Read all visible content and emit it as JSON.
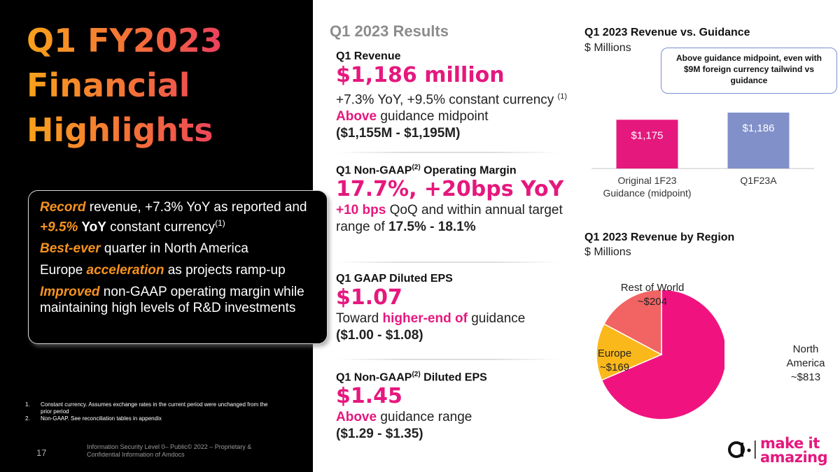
{
  "title": {
    "line1": "Q1 FY2023",
    "line2": "Financial",
    "line3": "Highlights"
  },
  "highlights": [
    {
      "em": "Record",
      "text": " revenue, +7.3% YoY as reported and ",
      "em2": "+9.5%",
      "bold": " YoY",
      "text2": " constant currency",
      "sup": "(1)"
    },
    {
      "em": "Best-ever",
      "text": " quarter in North America"
    },
    {
      "pre": "Europe ",
      "em": "acceleration",
      "text": " as projects ramp-up"
    },
    {
      "em": "Improved",
      "text": " non-GAAP operating margin while maintaining high levels of R&D investments"
    }
  ],
  "footnotes": [
    {
      "num": "1.",
      "text": "Constant currency. Assumes exchange rates in the current period were unchanged from the prior period"
    },
    {
      "num": "2.",
      "text": "Non-GAAP. See reconciliation tables in appendix"
    }
  ],
  "page_number": "17",
  "confidential": "Information Security Level 0– Public© 2022 – Proprietary & Confidential Information of Amdocs",
  "results": {
    "title": "Q1 2023 Results",
    "revenue": {
      "label": "Q1 Revenue",
      "value": "$1,186 million",
      "line1": "+7.3% YoY, +9.5% constant currency ",
      "line1_sup": "(1)",
      "above": "Above",
      "line2": " guidance midpoint",
      "line3": "($1,155M - $1,195M)"
    },
    "margin": {
      "label_pre": "Q1 Non-GAAP",
      "label_sup": "(2)",
      "label_post": " Operating Margin",
      "value": "17.7%, +20bps YoY",
      "hl": "+10 bps",
      "text": " QoQ and within annual target range of ",
      "range": "17.5% - 18.1%"
    },
    "gaap_eps": {
      "label": "Q1 GAAP Diluted EPS",
      "value": "$1.07",
      "pre": "Toward ",
      "hl": "higher-end of",
      "post": " guidance",
      "range": "($1.00 - $1.08)"
    },
    "nongaap_eps": {
      "label_pre": "Q1 Non-GAAP",
      "label_sup": "(2)",
      "label_post": " Diluted EPS",
      "value": "$1.45",
      "hl": "Above",
      "post": " guidance range",
      "range": "($1.29 - $1.35)"
    }
  },
  "callout": "Above guidance midpoint, even with $9M foreign currency tailwind vs guidance",
  "chart_data": [
    {
      "type": "bar",
      "title": "Q1 2023 Revenue vs. Guidance",
      "subtitle": "$ Millions",
      "categories": [
        "Original 1F23 Guidance (midpoint)",
        "Q1F23A"
      ],
      "values": [
        1175,
        1186
      ],
      "data_labels": [
        "$1,175",
        "$1,186"
      ],
      "colors": [
        "#e5187e",
        "#8190c9"
      ],
      "ylim": [
        0,
        1200
      ],
      "grid": false
    },
    {
      "type": "pie",
      "title": "Q1 2023 Revenue by Region",
      "subtitle": "$ Millions",
      "slices": [
        {
          "label": "North America",
          "value": 813,
          "text": "~$813",
          "color": "#f0137f"
        },
        {
          "label": "Europe",
          "value": 169,
          "text": "~$169",
          "color": "#fbb81b"
        },
        {
          "label": "Rest of World",
          "value": 204,
          "text": "~$204",
          "color": "#f26363"
        }
      ]
    }
  ],
  "logo": {
    "line1": "make it",
    "line2": "amazing"
  }
}
